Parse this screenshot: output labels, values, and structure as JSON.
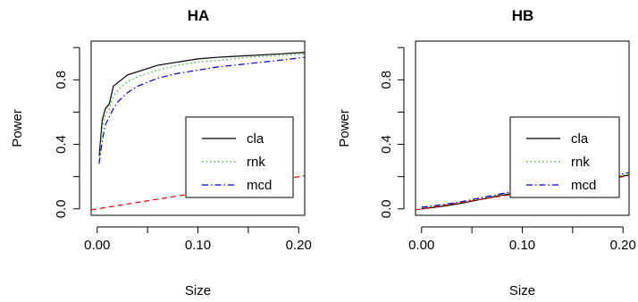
{
  "chart_data": [
    {
      "type": "line",
      "title": "HA",
      "xlabel": "Size",
      "ylabel": "Power",
      "xlim": [
        -0.006,
        0.206
      ],
      "ylim": [
        -0.04,
        1.04
      ],
      "xticks": [
        0.0,
        0.1,
        0.2
      ],
      "xtick_labels": [
        "0.00",
        "0.10",
        "0.20"
      ],
      "yticks": [
        0.0,
        0.4,
        0.8
      ],
      "ytick_labels": [
        "0.0",
        "0.4",
        "0.8"
      ],
      "legend_position": "bottom-right",
      "series": [
        {
          "name": "cla",
          "color": "#000000",
          "dash": "solid",
          "points": [
            [
              0.002,
              0.33
            ],
            [
              0.005,
              0.55
            ],
            [
              0.008,
              0.62
            ],
            [
              0.012,
              0.65
            ],
            [
              0.016,
              0.76
            ],
            [
              0.02,
              0.78
            ],
            [
              0.03,
              0.83
            ],
            [
              0.04,
              0.85
            ],
            [
              0.06,
              0.89
            ],
            [
              0.08,
              0.91
            ],
            [
              0.1,
              0.93
            ],
            [
              0.12,
              0.94
            ],
            [
              0.15,
              0.95
            ],
            [
              0.18,
              0.96
            ],
            [
              0.206,
              0.97
            ]
          ]
        },
        {
          "name": "rnk",
          "color": "#22b722",
          "dash": "dotted",
          "points": [
            [
              0.002,
              0.3
            ],
            [
              0.005,
              0.5
            ],
            [
              0.008,
              0.58
            ],
            [
              0.012,
              0.62
            ],
            [
              0.016,
              0.7
            ],
            [
              0.02,
              0.73
            ],
            [
              0.03,
              0.79
            ],
            [
              0.04,
              0.82
            ],
            [
              0.06,
              0.86
            ],
            [
              0.08,
              0.89
            ],
            [
              0.1,
              0.91
            ],
            [
              0.12,
              0.92
            ],
            [
              0.15,
              0.94
            ],
            [
              0.18,
              0.95
            ],
            [
              0.206,
              0.96
            ]
          ]
        },
        {
          "name": "mcd",
          "color": "#0000cc",
          "dash": "dashdot",
          "points": [
            [
              0.002,
              0.28
            ],
            [
              0.005,
              0.42
            ],
            [
              0.008,
              0.52
            ],
            [
              0.012,
              0.57
            ],
            [
              0.016,
              0.62
            ],
            [
              0.02,
              0.66
            ],
            [
              0.03,
              0.72
            ],
            [
              0.04,
              0.76
            ],
            [
              0.06,
              0.81
            ],
            [
              0.08,
              0.84
            ],
            [
              0.1,
              0.86
            ],
            [
              0.12,
              0.88
            ],
            [
              0.15,
              0.9
            ],
            [
              0.18,
              0.92
            ],
            [
              0.206,
              0.94
            ]
          ]
        },
        {
          "name": "",
          "color": "#ee0000",
          "dash": "dashed",
          "points": [
            [
              -0.006,
              -0.006
            ],
            [
              0.206,
              0.206
            ]
          ]
        }
      ]
    },
    {
      "type": "line",
      "title": "HB",
      "xlabel": "Size",
      "ylabel": "Power",
      "xlim": [
        -0.006,
        0.206
      ],
      "ylim": [
        -0.04,
        1.04
      ],
      "xticks": [
        0.0,
        0.1,
        0.2
      ],
      "xtick_labels": [
        "0.00",
        "0.10",
        "0.20"
      ],
      "yticks": [
        0.0,
        0.4,
        0.8
      ],
      "ytick_labels": [
        "0.0",
        "0.4",
        "0.8"
      ],
      "legend_position": "bottom-right",
      "series": [
        {
          "name": "cla",
          "color": "#000000",
          "dash": "solid",
          "points": [
            [
              0,
              0.0
            ],
            [
              0.02,
              0.015
            ],
            [
              0.04,
              0.035
            ],
            [
              0.06,
              0.06
            ],
            [
              0.08,
              0.085
            ],
            [
              0.1,
              0.105
            ],
            [
              0.12,
              0.125
            ],
            [
              0.14,
              0.14
            ],
            [
              0.16,
              0.16
            ],
            [
              0.18,
              0.18
            ],
            [
              0.206,
              0.21
            ]
          ]
        },
        {
          "name": "rnk",
          "color": "#22b722",
          "dash": "dotted",
          "points": [
            [
              0,
              0.005
            ],
            [
              0.02,
              0.02
            ],
            [
              0.04,
              0.04
            ],
            [
              0.06,
              0.065
            ],
            [
              0.08,
              0.09
            ],
            [
              0.1,
              0.11
            ],
            [
              0.12,
              0.13
            ],
            [
              0.14,
              0.145
            ],
            [
              0.16,
              0.165
            ],
            [
              0.18,
              0.185
            ],
            [
              0.206,
              0.215
            ]
          ]
        },
        {
          "name": "mcd",
          "color": "#0000cc",
          "dash": "dashdot",
          "points": [
            [
              0,
              0.01
            ],
            [
              0.02,
              0.025
            ],
            [
              0.04,
              0.045
            ],
            [
              0.06,
              0.07
            ],
            [
              0.08,
              0.095
            ],
            [
              0.1,
              0.115
            ],
            [
              0.12,
              0.135
            ],
            [
              0.14,
              0.15
            ],
            [
              0.16,
              0.17
            ],
            [
              0.18,
              0.19
            ],
            [
              0.206,
              0.225
            ]
          ]
        },
        {
          "name": "",
          "color": "#ee0000",
          "dash": "dashed",
          "points": [
            [
              -0.006,
              -0.006
            ],
            [
              0.206,
              0.206
            ]
          ]
        }
      ]
    }
  ]
}
